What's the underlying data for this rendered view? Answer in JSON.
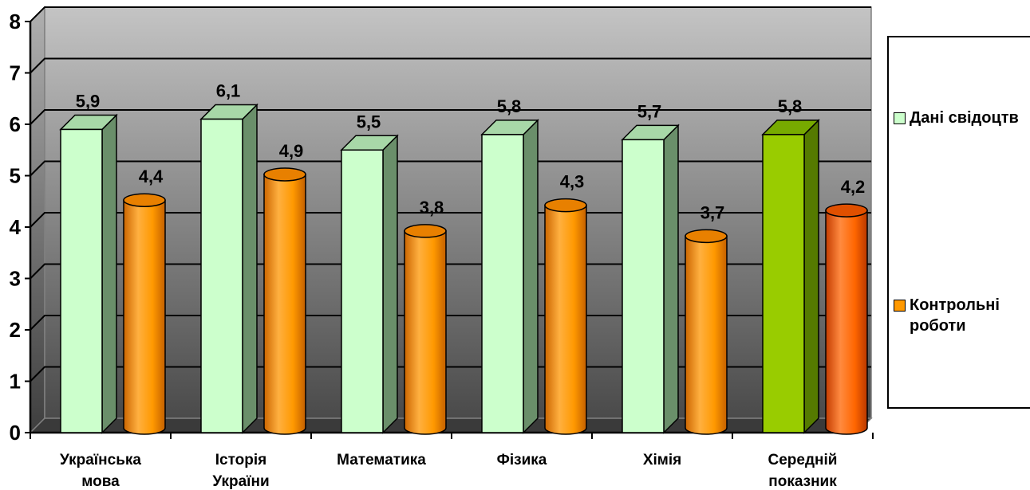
{
  "chart_data": {
    "type": "bar",
    "categories": [
      [
        "Українська",
        "мова"
      ],
      [
        "Історія",
        "України"
      ],
      [
        "Математика"
      ],
      [
        "Фізика"
      ],
      [
        "Хімія"
      ],
      [
        "Середній",
        "показник"
      ]
    ],
    "series": [
      {
        "name": "Дані свідоцтв",
        "values": [
          5.9,
          6.1,
          5.5,
          5.8,
          5.7,
          5.8
        ],
        "labels": [
          "5,9",
          "6,1",
          "5,5",
          "5,8",
          "5,7",
          "5,8"
        ]
      },
      {
        "name": "Контрольні роботи",
        "values": [
          4.4,
          4.9,
          3.8,
          4.3,
          3.7,
          4.2
        ],
        "labels": [
          "4,4",
          "4,9",
          "3,8",
          "4,3",
          "3,7",
          "4,2"
        ]
      }
    ],
    "ylim": [
      0,
      8
    ],
    "yticks": [
      "0",
      "1",
      "2",
      "3",
      "4",
      "5",
      "6",
      "7",
      "8"
    ],
    "grid": true,
    "legend_position": "right",
    "colors": {
      "series1": "#ccffcc",
      "series1_highlight": "#99cc00",
      "series2": "#ff9900",
      "series2_highlight": "#ff6600"
    }
  },
  "legend": {
    "items": [
      {
        "label": "Дані свідоцтв",
        "color": "#ccffcc"
      },
      {
        "label": "Контрольні роботи",
        "color": "#ff9900"
      }
    ]
  }
}
